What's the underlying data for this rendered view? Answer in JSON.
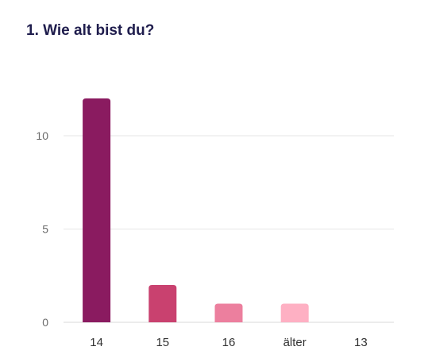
{
  "title": "1. Wie alt bist du?",
  "chart_data": {
    "type": "bar",
    "categories": [
      "14",
      "15",
      "16",
      "älter",
      "13"
    ],
    "values": [
      12,
      2,
      1,
      1,
      0
    ],
    "colors": [
      "#8a1b60",
      "#c9416f",
      "#ec7f9e",
      "#feb0c3",
      "#fcd4de"
    ],
    "yticks": [
      0,
      5,
      10
    ],
    "ylim": [
      0,
      12
    ],
    "grid": true,
    "legend": "none"
  }
}
